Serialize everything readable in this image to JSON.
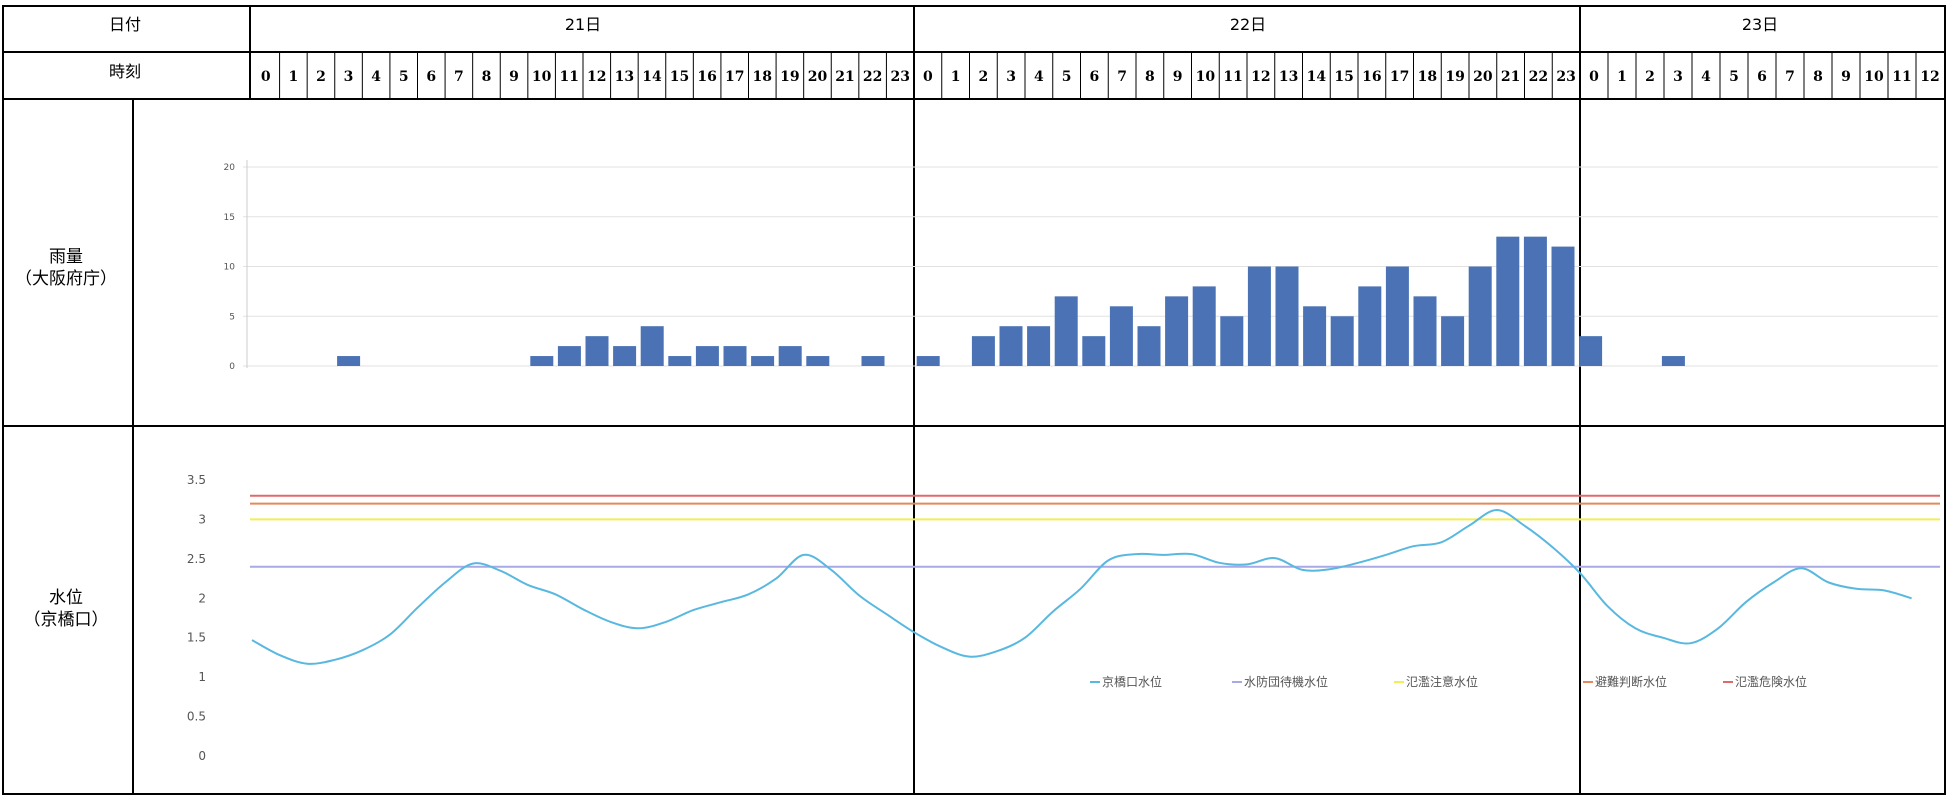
{
  "table": {
    "date_header": "日付",
    "time_header": "時刻",
    "days": [
      "21日",
      "22日",
      "23日"
    ],
    "hours_full_day": [
      "0",
      "1",
      "2",
      "3",
      "4",
      "5",
      "6",
      "7",
      "8",
      "9",
      "10",
      "11",
      "12",
      "13",
      "14",
      "15",
      "16",
      "17",
      "18",
      "19",
      "20",
      "21",
      "22",
      "23"
    ],
    "hours_day23": [
      "0",
      "1",
      "2",
      "3",
      "4",
      "5",
      "6",
      "7",
      "8",
      "9",
      "10",
      "11",
      "12"
    ],
    "rain_label_line1": "雨量",
    "rain_label_line2": "（大阪府庁）",
    "level_label_line1": "水位",
    "level_label_line2": "（京橋口）"
  },
  "colors": {
    "bar": "#4a72b4",
    "level_line": "#58b8e0",
    "standby_line": "#a9a9e6",
    "caution_line": "#f2ee55",
    "evac_line": "#e48a5a",
    "danger_line": "#e06a6a",
    "border": "#000000",
    "grid": "#e2e2e2"
  },
  "chart_data": [
    {
      "type": "bar",
      "title": "",
      "xlabel": "",
      "ylabel": "",
      "ylim": [
        0,
        20
      ],
      "yticks": [
        0,
        5,
        10,
        15,
        20
      ],
      "grid": true,
      "categories": [
        "21日0",
        "21日1",
        "21日2",
        "21日3",
        "21日4",
        "21日5",
        "21日6",
        "21日7",
        "21日8",
        "21日9",
        "21日10",
        "21日11",
        "21日12",
        "21日13",
        "21日14",
        "21日15",
        "21日16",
        "21日17",
        "21日18",
        "21日19",
        "21日20",
        "21日21",
        "21日22",
        "21日23",
        "22日0",
        "22日1",
        "22日2",
        "22日3",
        "22日4",
        "22日5",
        "22日6",
        "22日7",
        "22日8",
        "22日9",
        "22日10",
        "22日11",
        "22日12",
        "22日13",
        "22日14",
        "22日15",
        "22日16",
        "22日17",
        "22日18",
        "22日19",
        "22日20",
        "22日21",
        "22日22",
        "22日23",
        "23日0",
        "23日1",
        "23日2",
        "23日3",
        "23日4",
        "23日5",
        "23日6",
        "23日7",
        "23日8",
        "23日9",
        "23日10",
        "23日11",
        "23日12"
      ],
      "values": [
        0,
        0,
        0,
        1,
        0,
        0,
        0,
        0,
        0,
        0,
        1,
        2,
        3,
        2,
        4,
        1,
        2,
        2,
        1,
        2,
        1,
        0,
        1,
        0,
        1,
        0,
        3,
        4,
        4,
        7,
        3,
        6,
        4,
        7,
        8,
        5,
        10,
        10,
        6,
        5,
        8,
        10,
        7,
        5,
        10,
        13,
        13,
        12,
        3,
        0,
        0,
        1,
        0,
        0,
        0,
        0,
        0,
        0,
        0,
        0,
        0
      ]
    },
    {
      "type": "line",
      "title": "",
      "xlabel": "",
      "ylabel": "",
      "ylim": [
        0,
        3.5
      ],
      "yticks": [
        0,
        0.5,
        1,
        1.5,
        2,
        2.5,
        3,
        3.5
      ],
      "ytick_labels": [
        "0",
        "0.5",
        "1",
        "1.5",
        "2",
        "2.5",
        "3",
        "3.5"
      ],
      "grid": false,
      "legend_position": "lower-right",
      "x_hours_from_21d0h": [
        0,
        1,
        2,
        3,
        4,
        5,
        6,
        7,
        8,
        9,
        10,
        11,
        12,
        13,
        14,
        15,
        16,
        17,
        18,
        19,
        20,
        21,
        22,
        23,
        24,
        25,
        26,
        27,
        28,
        29,
        30,
        31,
        32,
        33,
        34,
        35,
        36,
        37,
        38,
        39,
        40,
        41,
        42,
        43,
        44,
        45,
        46,
        47,
        48,
        49,
        50,
        51,
        52,
        53,
        54,
        55,
        56,
        57,
        58,
        59,
        60
      ],
      "series": [
        {
          "name": "京橋口水位",
          "values": [
            1.47,
            1.28,
            1.17,
            1.22,
            1.34,
            1.54,
            1.88,
            2.2,
            2.44,
            2.35,
            2.17,
            2.05,
            1.86,
            1.7,
            1.62,
            1.7,
            1.85,
            1.95,
            2.05,
            2.25,
            2.55,
            2.36,
            2.04,
            1.8,
            1.57,
            1.38,
            1.26,
            1.33,
            1.5,
            1.83,
            2.12,
            2.48,
            2.56,
            2.55,
            2.56,
            2.45,
            2.43,
            2.51,
            2.36,
            2.37,
            2.45,
            2.55,
            2.66,
            2.71,
            2.92,
            3.12,
            2.92,
            2.65,
            2.32,
            1.9,
            1.62,
            1.5,
            1.43,
            1.62,
            1.95,
            2.2,
            2.38,
            2.2,
            2.12,
            2.1,
            2.0
          ]
        }
      ],
      "thresholds": [
        {
          "name": "水防団待機水位",
          "value": 2.4
        },
        {
          "name": "氾濫注意水位",
          "value": 3.0
        },
        {
          "name": "避難判断水位",
          "value": 3.2
        },
        {
          "name": "氾濫危険水位",
          "value": 3.3
        }
      ]
    }
  ]
}
